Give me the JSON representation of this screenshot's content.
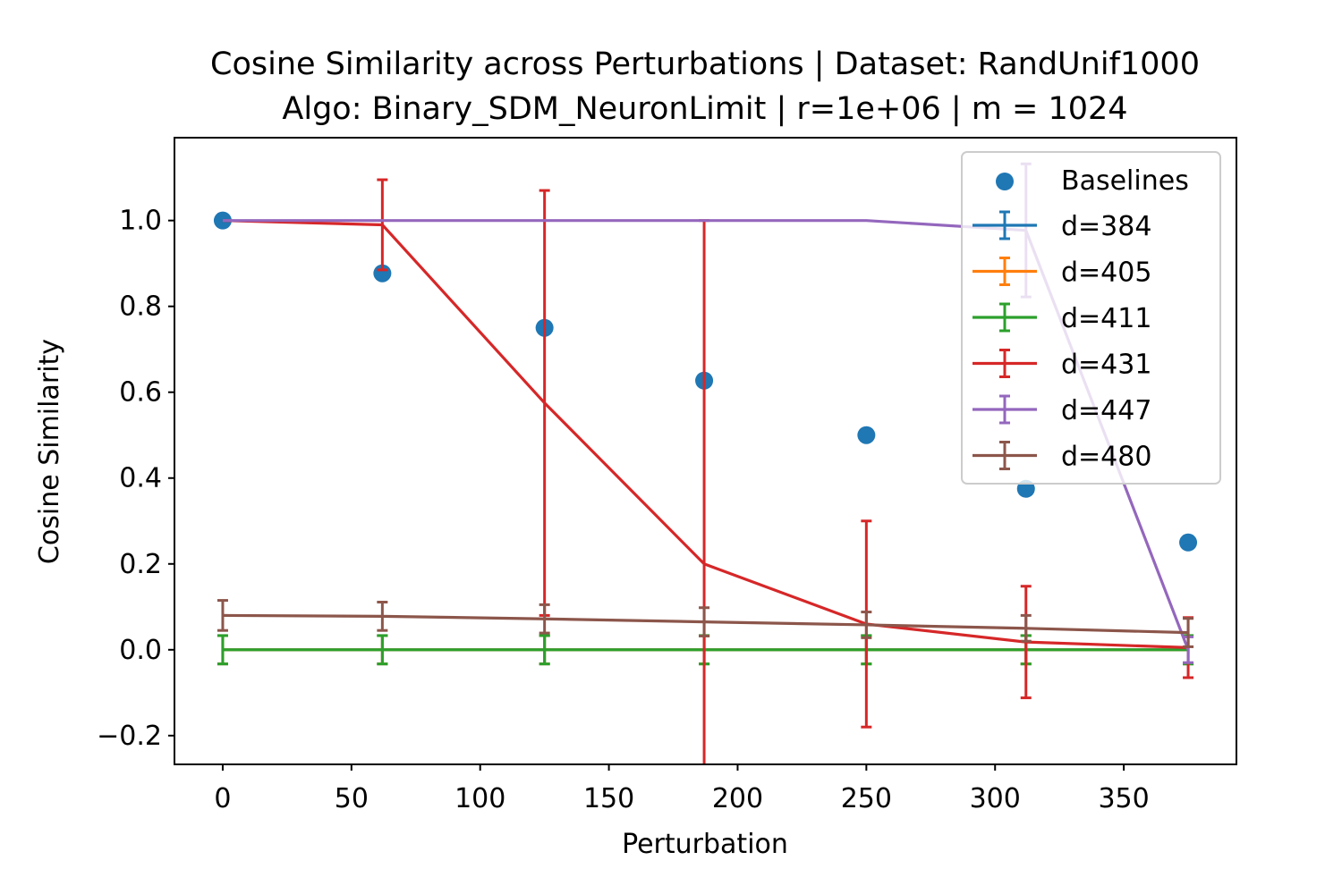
{
  "chart_data": {
    "type": "line",
    "title_line1": "Cosine Similarity across Perturbations | Dataset: RandUnif1000",
    "title_line2": "Algo: Binary_SDM_NeuronLimit | r=1e+06 | m = 1024",
    "xlabel": "Perturbation",
    "ylabel": "Cosine Similarity",
    "xlim": [
      -18.75,
      393.75
    ],
    "ylim": [
      -0.267,
      1.193
    ],
    "xticks": [
      0,
      50,
      100,
      150,
      200,
      250,
      300,
      350
    ],
    "yticks": [
      -0.2,
      0.0,
      0.2,
      0.4,
      0.6,
      0.8,
      1.0
    ],
    "ytick_labels": [
      "−0.2",
      "0.0",
      "0.2",
      "0.4",
      "0.6",
      "0.8",
      "1.0"
    ],
    "legend_position": "upper right",
    "x": [
      0,
      62,
      125,
      187,
      250,
      312,
      375
    ],
    "baselines": {
      "name": "Baselines",
      "color": "#1f77b4",
      "values": [
        1.0,
        0.877,
        0.75,
        0.627,
        0.5,
        0.375,
        0.25
      ]
    },
    "series": [
      {
        "name": "d=384",
        "color": "#1f77b4",
        "values": [
          0,
          0,
          0,
          0,
          0,
          0,
          0
        ],
        "errors": [
          0.033,
          0.033,
          0.033,
          0.033,
          0.033,
          0.033,
          0.033
        ]
      },
      {
        "name": "d=405",
        "color": "#ff7f0e",
        "values": [
          0,
          0,
          0,
          0,
          0,
          0,
          0
        ],
        "errors": [
          0.033,
          0.033,
          0.033,
          0.033,
          0.033,
          0.033,
          0.033
        ]
      },
      {
        "name": "d=411",
        "color": "#2ca02c",
        "values": [
          0,
          0,
          0,
          0,
          0,
          0,
          0
        ],
        "errors": [
          0.033,
          0.033,
          0.033,
          0.033,
          0.033,
          0.033,
          0.033
        ]
      },
      {
        "name": "d=431",
        "color": "#d62728",
        "values": [
          1.0,
          0.99,
          0.575,
          0.2,
          0.06,
          0.018,
          0.005
        ],
        "errors": [
          0,
          0.105,
          0.495,
          0.8,
          0.24,
          0.13,
          0.07
        ]
      },
      {
        "name": "d=447",
        "color": "#9467bd",
        "values": [
          1.0,
          1.0,
          1.0,
          1.0,
          1.0,
          0.977,
          0.0
        ],
        "errors": [
          0,
          0,
          0,
          0,
          0,
          0.155,
          0.03
        ]
      },
      {
        "name": "d=480",
        "color": "#8c564b",
        "values": [
          0.08,
          0.078,
          0.072,
          0.065,
          0.058,
          0.05,
          0.04
        ],
        "errors": [
          0.035,
          0.033,
          0.033,
          0.033,
          0.03,
          0.03,
          0.033
        ]
      }
    ]
  }
}
